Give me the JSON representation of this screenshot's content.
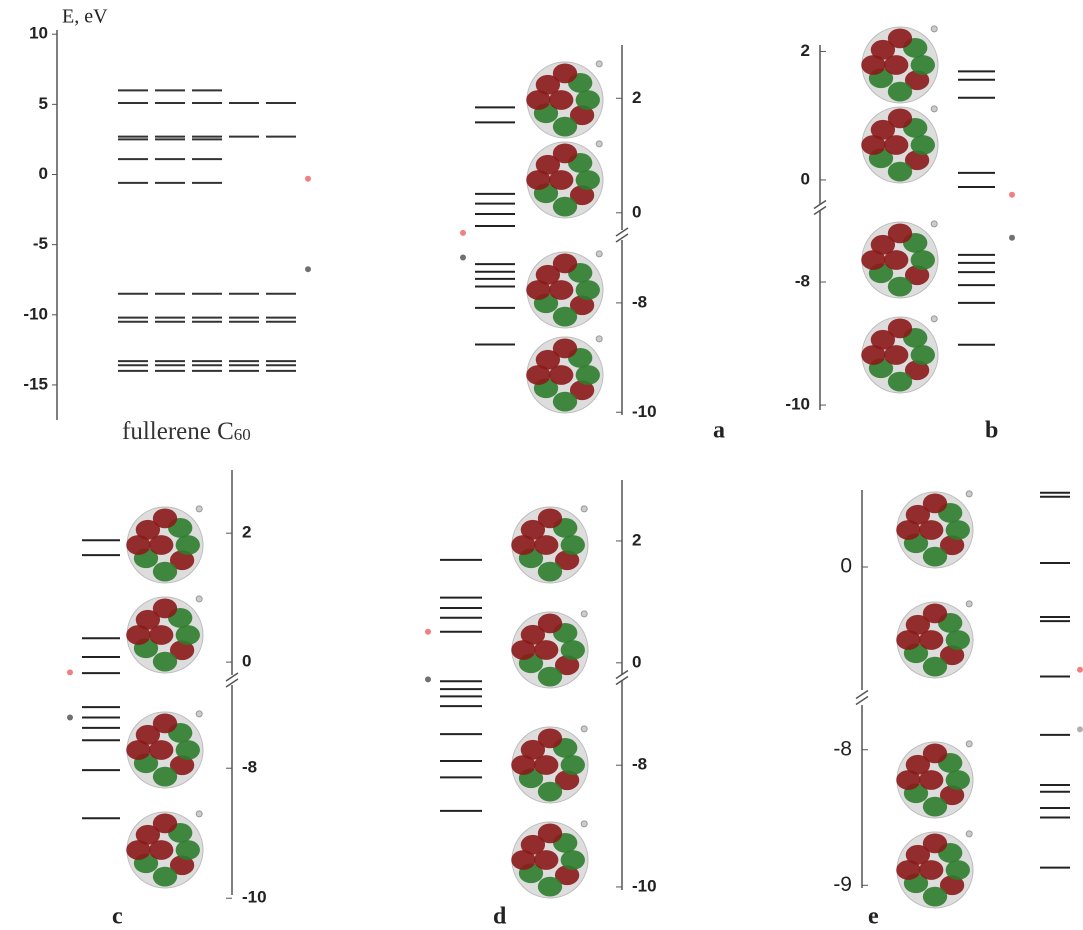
{
  "fullerene": {
    "axis_label": "E, eV",
    "ylim": [
      -17.5,
      10.3
    ],
    "yticks": [
      10,
      5,
      0,
      -5,
      -10,
      -15
    ],
    "levels": [
      6.0,
      5.1,
      2.7,
      2.5,
      1.1,
      -0.6,
      -8.5,
      -10.2,
      -10.5,
      -13.3,
      -13.6,
      -14.0
    ],
    "degeneracy": [
      3,
      5,
      5,
      3,
      3,
      3,
      5,
      5,
      5,
      5,
      5,
      5
    ],
    "markers": [
      {
        "color": "#f08080",
        "value": -0.3
      },
      {
        "color": "#707070",
        "value": -6.75
      }
    ],
    "caption": "fullerene C",
    "caption_sub": "60"
  },
  "panels": [
    {
      "label": "a",
      "segments": [
        {
          "ylim": [
            -0.3,
            2.93
          ],
          "yticks": [
            2,
            0
          ],
          "levels": [
            1.84,
            1.58,
            0.33,
            0.16,
            -0.02,
            -0.23
          ],
          "markers": [
            {
              "color": "#f08080",
              "value": -0.35
            }
          ]
        },
        {
          "ylim": [
            -10.05,
            -6.85
          ],
          "yticks": [
            -8,
            -10
          ],
          "levels": [
            -7.29,
            -7.43,
            -7.56,
            -7.7,
            -8.09,
            -8.76
          ],
          "markers": [
            {
              "color": "#707070",
              "value": -7.17
            }
          ]
        }
      ]
    },
    {
      "label": "b",
      "segments": [
        {
          "ylim": [
            -0.39,
            2.1
          ],
          "yticks": [
            2,
            0
          ],
          "levels": [
            1.69,
            1.56,
            1.28,
            0.11,
            -0.11
          ],
          "markers": [
            {
              "color": "#f08080",
              "value": -0.23
            }
          ]
        },
        {
          "ylim": [
            -10.08,
            -6.83
          ],
          "yticks": [
            -8,
            -10
          ],
          "levels": [
            -7.56,
            -7.69,
            -7.84,
            -8.05,
            -8.34,
            -9.02
          ],
          "markers": [
            {
              "color": "#707070",
              "value": -7.28
            }
          ]
        }
      ]
    },
    {
      "label": "c",
      "segments": [
        {
          "ylim": [
            -0.2,
            2.98
          ],
          "yticks": [
            2,
            0
          ],
          "levels": [
            1.89,
            1.66,
            0.37,
            0.08,
            -0.17
          ],
          "markers": [
            {
              "color": "#f08080",
              "value": -0.16
            }
          ]
        },
        {
          "ylim": [
            -9.95,
            -6.72
          ],
          "yticks": [
            -8,
            -10
          ],
          "levels": [
            -7.06,
            -7.22,
            -7.38,
            -7.57,
            -8.03,
            -8.77
          ],
          "markers": [
            {
              "color": "#707070",
              "value": -7.22
            }
          ]
        }
      ]
    },
    {
      "label": "d",
      "segments": [
        {
          "ylim": [
            -0.2,
            3.0
          ],
          "yticks": [
            2,
            0
          ],
          "levels": [
            1.69,
            1.07,
            0.9,
            0.74,
            0.51
          ],
          "markers": [
            {
              "color": "#f08080",
              "value": 0.51
            }
          ]
        },
        {
          "ylim": [
            -10.05,
            -6.6
          ],
          "yticks": [
            -8,
            -10
          ],
          "levels": [
            -6.62,
            -6.75,
            -6.87,
            -7.03,
            -7.49,
            -7.93,
            -8.2,
            -8.75
          ],
          "markers": [
            {
              "color": "#707070",
              "value": -6.59
            }
          ]
        }
      ]
    },
    {
      "label": "e",
      "segments": [
        {
          "ylim": [
            -0.91,
            0.57
          ],
          "yticks": [
            0
          ],
          "levels": [
            0.55,
            0.52,
            0.03,
            -0.37,
            -0.4,
            -0.81
          ],
          "markers": [
            {
              "color": "#f08080",
              "value": -0.76
            }
          ]
        },
        {
          "ylim": [
            -9.02,
            -7.67
          ],
          "yticks": [
            -8,
            -9
          ],
          "levels": [
            -7.89,
            -8.26,
            -8.31,
            -8.43,
            -8.5,
            -8.87
          ],
          "markers": [
            {
              "color": "#b0b0b0",
              "value": -7.85
            }
          ]
        }
      ]
    }
  ]
}
